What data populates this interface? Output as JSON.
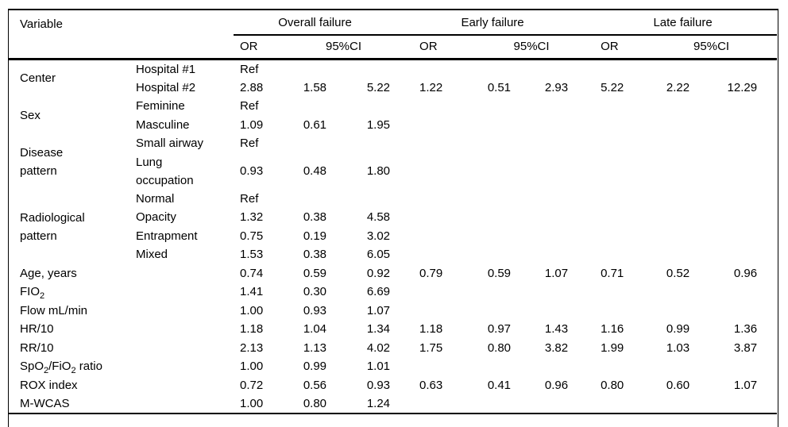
{
  "colors": {
    "background": "#ffffff",
    "text": "#000000",
    "rule": "#000000"
  },
  "table": {
    "header": {
      "variable": "Variable",
      "groups": [
        {
          "label": "Overall failure"
        },
        {
          "label": "Early failure"
        },
        {
          "label": "Late failure"
        }
      ],
      "or_label": "OR",
      "ci_label": "95%CI"
    },
    "rows": [
      {
        "variable": "Center",
        "span": 2,
        "cat": "Hospital #1",
        "o": [
          "Ref",
          "",
          ""
        ],
        "e": [
          "",
          "",
          ""
        ],
        "l": [
          "",
          "",
          ""
        ]
      },
      {
        "cat": "Hospital #2",
        "o": [
          "2.88",
          "1.58",
          "5.22"
        ],
        "e": [
          "1.22",
          "0.51",
          "2.93"
        ],
        "l": [
          "5.22",
          "2.22",
          "12.29"
        ]
      },
      {
        "variable": "Sex",
        "span": 2,
        "cat": "Feminine",
        "o": [
          "Ref",
          "",
          ""
        ],
        "e": [
          "",
          "",
          ""
        ],
        "l": [
          "",
          "",
          ""
        ]
      },
      {
        "cat": "Masculine",
        "o": [
          "1.09",
          "0.61",
          "1.95"
        ],
        "e": [
          "",
          "",
          ""
        ],
        "l": [
          "",
          "",
          ""
        ]
      },
      {
        "variable": "Disease\npattern",
        "span": 2,
        "cat": "Small airway",
        "o": [
          "Ref",
          "",
          ""
        ],
        "e": [
          "",
          "",
          ""
        ],
        "l": [
          "",
          "",
          ""
        ]
      },
      {
        "cat": "Lung\noccupation",
        "o": [
          "0.93",
          "0.48",
          "1.80"
        ],
        "e": [
          "",
          "",
          ""
        ],
        "l": [
          "",
          "",
          ""
        ]
      },
      {
        "variable": "Radiological\npattern",
        "span": 4,
        "cat": "Normal",
        "o": [
          "Ref",
          "",
          ""
        ],
        "e": [
          "",
          "",
          ""
        ],
        "l": [
          "",
          "",
          ""
        ]
      },
      {
        "cat": "Opacity",
        "o": [
          "1.32",
          "0.38",
          "4.58"
        ],
        "e": [
          "",
          "",
          ""
        ],
        "l": [
          "",
          "",
          ""
        ]
      },
      {
        "cat": "Entrapment",
        "o": [
          "0.75",
          "0.19",
          "3.02"
        ],
        "e": [
          "",
          "",
          ""
        ],
        "l": [
          "",
          "",
          ""
        ]
      },
      {
        "cat": "Mixed",
        "o": [
          "1.53",
          "0.38",
          "6.05"
        ],
        "e": [
          "",
          "",
          ""
        ],
        "l": [
          "",
          "",
          ""
        ]
      },
      {
        "variable": "Age, years",
        "span": 1,
        "cat": "",
        "o": [
          "0.74",
          "0.59",
          "0.92"
        ],
        "e": [
          "0.79",
          "0.59",
          "1.07"
        ],
        "l": [
          "0.71",
          "0.52",
          "0.96"
        ]
      },
      {
        "variable": "FIO_{2}",
        "span": 1,
        "cat": "",
        "o": [
          "1.41",
          "0.30",
          "6.69"
        ],
        "e": [
          "",
          "",
          ""
        ],
        "l": [
          "",
          "",
          ""
        ]
      },
      {
        "variable": "Flow mL/min",
        "span": 1,
        "cat": "",
        "o": [
          "1.00",
          "0.93",
          "1.07"
        ],
        "e": [
          "",
          "",
          ""
        ],
        "l": [
          "",
          "",
          ""
        ]
      },
      {
        "variable": "HR/10",
        "span": 1,
        "cat": "",
        "o": [
          "1.18",
          "1.04",
          "1.34"
        ],
        "e": [
          "1.18",
          "0.97",
          "1.43"
        ],
        "l": [
          "1.16",
          "0.99",
          "1.36"
        ]
      },
      {
        "variable": "RR/10",
        "span": 1,
        "cat": "",
        "o": [
          "2.13",
          "1.13",
          "4.02"
        ],
        "e": [
          "1.75",
          "0.80",
          "3.82"
        ],
        "l": [
          "1.99",
          "1.03",
          "3.87"
        ]
      },
      {
        "variable": "SpO_{2}/FiO_{2} ratio",
        "span": 1,
        "cat": "",
        "o": [
          "1.00",
          "0.99",
          "1.01"
        ],
        "e": [
          "",
          "",
          ""
        ],
        "l": [
          "",
          "",
          ""
        ]
      },
      {
        "variable": "ROX index",
        "span": 1,
        "cat": "",
        "o": [
          "0.72",
          "0.56",
          "0.93"
        ],
        "e": [
          "0.63",
          "0.41",
          "0.96"
        ],
        "l": [
          "0.80",
          "0.60",
          "1.07"
        ]
      },
      {
        "variable": "M-WCAS",
        "span": 1,
        "cat": "",
        "o": [
          "1.00",
          "0.80",
          "1.24"
        ],
        "e": [
          "",
          "",
          ""
        ],
        "l": [
          "",
          "",
          ""
        ]
      }
    ]
  }
}
